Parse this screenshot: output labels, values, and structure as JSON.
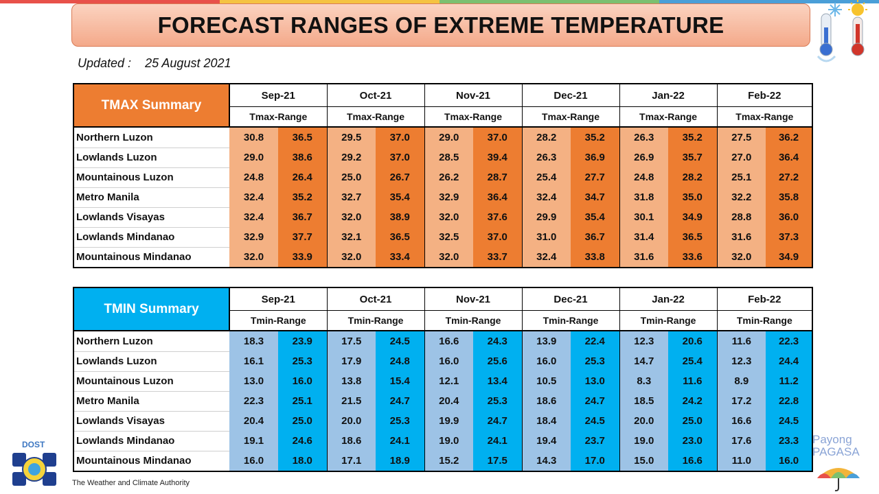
{
  "title": "FORECAST RANGES OF EXTREME TEMPERATURE",
  "updated_label": "Updated :",
  "updated_date": "25 August 2021",
  "months": [
    "Sep-21",
    "Oct-21",
    "Nov-21",
    "Dec-21",
    "Jan-22",
    "Feb-22"
  ],
  "tmax": {
    "summary_label": "TMAX Summary",
    "range_label": "Tmax-Range",
    "color_low": "#f4b183",
    "color_high": "#ed7d31",
    "rows": [
      {
        "region": "Northern Luzon",
        "values": [
          "30.8",
          "36.5",
          "29.5",
          "37.0",
          "29.0",
          "37.0",
          "28.2",
          "35.2",
          "26.3",
          "35.2",
          "27.5",
          "36.2"
        ]
      },
      {
        "region": "Lowlands Luzon",
        "values": [
          "29.0",
          "38.6",
          "29.2",
          "37.0",
          "28.5",
          "39.4",
          "26.3",
          "36.9",
          "26.9",
          "35.7",
          "27.0",
          "36.4"
        ]
      },
      {
        "region": "Mountainous Luzon",
        "values": [
          "24.8",
          "26.4",
          "25.0",
          "26.7",
          "26.2",
          "28.7",
          "25.4",
          "27.7",
          "24.8",
          "28.2",
          "25.1",
          "27.2"
        ]
      },
      {
        "region": "Metro Manila",
        "values": [
          "32.4",
          "35.2",
          "32.7",
          "35.4",
          "32.9",
          "36.4",
          "32.4",
          "34.7",
          "31.8",
          "35.0",
          "32.2",
          "35.8"
        ]
      },
      {
        "region": "Lowlands Visayas",
        "values": [
          "32.4",
          "36.7",
          "32.0",
          "38.9",
          "32.0",
          "37.6",
          "29.9",
          "35.4",
          "30.1",
          "34.9",
          "28.8",
          "36.0"
        ]
      },
      {
        "region": "Lowlands Mindanao",
        "values": [
          "32.9",
          "37.7",
          "32.1",
          "36.5",
          "32.5",
          "37.0",
          "31.0",
          "36.7",
          "31.4",
          "36.5",
          "31.6",
          "37.3"
        ]
      },
      {
        "region": "Mountainous Mindanao",
        "values": [
          "32.0",
          "33.9",
          "32.0",
          "33.4",
          "32.0",
          "33.7",
          "32.4",
          "33.8",
          "31.6",
          "33.6",
          "32.0",
          "34.9"
        ]
      }
    ]
  },
  "tmin": {
    "summary_label": "TMIN Summary",
    "range_label": "Tmin-Range",
    "color_low": "#9dc3e6",
    "color_high": "#00b0f0",
    "rows": [
      {
        "region": "Northern Luzon",
        "values": [
          "18.3",
          "23.9",
          "17.5",
          "24.5",
          "16.6",
          "24.3",
          "13.9",
          "22.4",
          "12.3",
          "20.6",
          "11.6",
          "22.3"
        ]
      },
      {
        "region": "Lowlands Luzon",
        "values": [
          "16.1",
          "25.3",
          "17.9",
          "24.8",
          "16.0",
          "25.6",
          "16.0",
          "25.3",
          "14.7",
          "25.4",
          "12.3",
          "24.4"
        ]
      },
      {
        "region": "Mountainous Luzon",
        "values": [
          "13.0",
          "16.0",
          "13.8",
          "15.4",
          "12.1",
          "13.4",
          "10.5",
          "13.0",
          "8.3",
          "11.6",
          "8.9",
          "11.2"
        ]
      },
      {
        "region": "Metro Manila",
        "values": [
          "22.3",
          "25.1",
          "21.5",
          "24.7",
          "20.4",
          "25.3",
          "18.6",
          "24.7",
          "18.5",
          "24.2",
          "17.2",
          "22.8"
        ]
      },
      {
        "region": "Lowlands Visayas",
        "values": [
          "20.4",
          "25.0",
          "20.0",
          "25.3",
          "19.9",
          "24.7",
          "18.4",
          "24.5",
          "20.0",
          "25.0",
          "16.6",
          "24.5"
        ]
      },
      {
        "region": "Lowlands Mindanao",
        "values": [
          "19.1",
          "24.6",
          "18.6",
          "24.1",
          "19.0",
          "24.1",
          "19.4",
          "23.7",
          "19.0",
          "23.0",
          "17.6",
          "23.3"
        ]
      },
      {
        "region": "Mountainous Mindanao",
        "values": [
          "16.0",
          "18.0",
          "17.1",
          "18.9",
          "15.2",
          "17.5",
          "14.3",
          "17.0",
          "15.0",
          "16.6",
          "11.0",
          "16.0"
        ]
      }
    ]
  },
  "footer": {
    "agency_abbr": "DOST",
    "tagline": "The Weather and Climate Authority",
    "payong_line1": "Payong",
    "payong_line2": "PAGASA"
  },
  "icons": [
    "thermometer-cold-icon",
    "thermometer-hot-icon",
    "dost-pagasa-logo",
    "umbrella-icon"
  ]
}
